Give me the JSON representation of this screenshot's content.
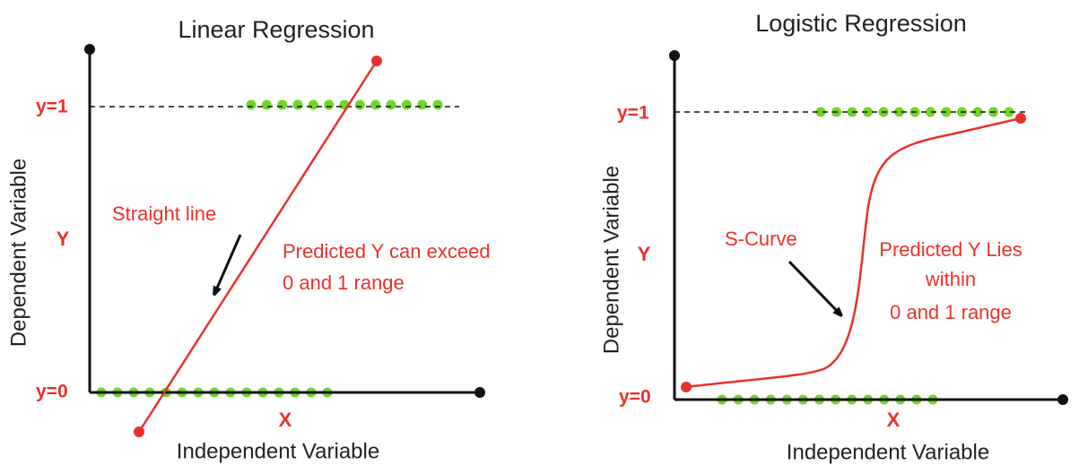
{
  "panels": [
    {
      "title": "Linear Regression",
      "y_axis_label": "Dependent Variable",
      "y_symbol": "Y",
      "x_symbol": "X",
      "x_axis_label": "Independent Variable",
      "y1_label": "y=1",
      "y0_label": "y=0",
      "curve_label": "Straight line",
      "note_lines": [
        "Predicted Y can exceed",
        "0 and 1 range"
      ]
    },
    {
      "title": "Logistic Regression",
      "y_axis_label": "Dependent Variable",
      "y_symbol": "Y",
      "x_symbol": "X",
      "x_axis_label": "Independent Variable",
      "y1_label": "y=1",
      "y0_label": "y=0",
      "curve_label": "S-Curve",
      "note_lines": [
        "Predicted Y Lies",
        "within",
        "0 and 1 range"
      ]
    }
  ]
}
